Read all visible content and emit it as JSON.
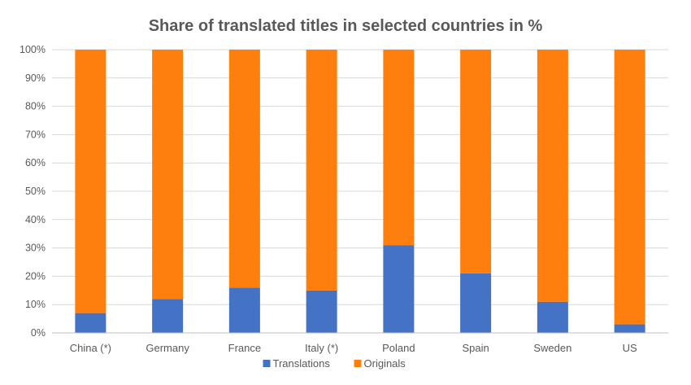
{
  "chart_data": {
    "type": "bar",
    "stacked": true,
    "title": "Share of translated titles in selected countries in %",
    "xlabel": "",
    "ylabel": "",
    "ylim": [
      0,
      100
    ],
    "y_ticks": [
      "0%",
      "10%",
      "20%",
      "30%",
      "40%",
      "50%",
      "60%",
      "70%",
      "80%",
      "90%",
      "100%"
    ],
    "grid": true,
    "legend_position": "bottom",
    "categories": [
      "China (*)",
      "Germany",
      "France",
      "Italy (*)",
      "Poland",
      "Spain",
      "Sweden",
      "US"
    ],
    "series": [
      {
        "name": "Translations",
        "color": "#4472C4",
        "values": [
          7,
          12,
          16,
          15,
          31,
          21,
          11,
          3
        ]
      },
      {
        "name": "Originals",
        "color": "#FF7F0E",
        "values": [
          93,
          88,
          84,
          85,
          69,
          79,
          89,
          97
        ]
      }
    ]
  }
}
